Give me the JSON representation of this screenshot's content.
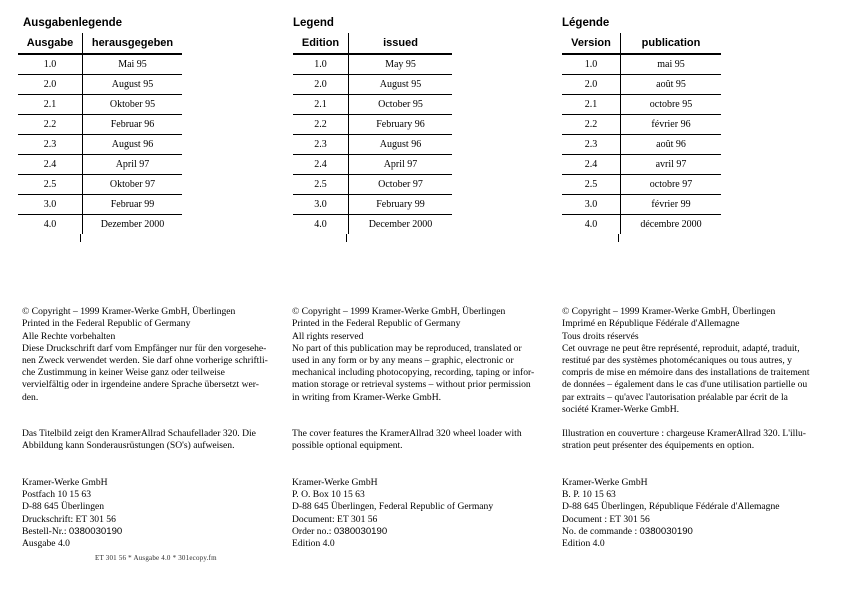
{
  "colors": {
    "text": "#000000",
    "background": "#ffffff"
  },
  "footer": {
    "text": "ET 301 56 * Ausgabe 4.0 * 301ecopy.fm"
  },
  "sections": [
    {
      "lang": "german",
      "title": "Ausgabenlegende",
      "table": {
        "headers": [
          "Ausgabe",
          "herausgegeben"
        ],
        "rows": [
          [
            "1.0",
            "Mai 95"
          ],
          [
            "2.0",
            "August 95"
          ],
          [
            "2.1",
            "Oktober 95"
          ],
          [
            "2.2",
            "Februar 96"
          ],
          [
            "2.3",
            "August 96"
          ],
          [
            "2.4",
            "April 97"
          ],
          [
            "2.5",
            "Oktober 97"
          ],
          [
            "3.0",
            "Februar 99"
          ],
          [
            "4.0",
            "Dezember 2000"
          ]
        ]
      },
      "copyright": "© Copyright – 1999 Kramer-Werke GmbH, Überlingen\nPrinted in the Federal Republic of Germany\nAlle Rechte vorbehalten\nDiese Druckschrift darf vom Empfänger nur für den vorgesehe-\nnen Zweck verwendet werden. Sie darf ohne vorherige schriftli-\nche Zustimmung in keiner Weise ganz oder teilweise\nvervielfältig oder in irgendeine andere Sprache übersetzt wer-\nden.",
      "cover_note": "Das Titelbild zeigt den KramerAllrad Schaufellader 320. Die\nAbbildung kann Sonderausrüstungen (SO's) aufweisen.",
      "address": {
        "company": "Kramer-Werke GmbH",
        "line2": "Postfach 10 15 63",
        "line3": "D-88 645 Überlingen",
        "line4": "Druckschrift: ET 301 56",
        "order_label": "Bestell-Nr.: ",
        "order_number": "0380030190",
        "edition": "Ausgabe 4.0"
      }
    },
    {
      "lang": "english",
      "title": "Legend",
      "table": {
        "headers": [
          "Edition",
          "issued"
        ],
        "rows": [
          [
            "1.0",
            "May 95"
          ],
          [
            "2.0",
            "August 95"
          ],
          [
            "2.1",
            "October 95"
          ],
          [
            "2.2",
            "February 96"
          ],
          [
            "2.3",
            "August 96"
          ],
          [
            "2.4",
            "April 97"
          ],
          [
            "2.5",
            "October 97"
          ],
          [
            "3.0",
            "February 99"
          ],
          [
            "4.0",
            "December 2000"
          ]
        ]
      },
      "copyright": "© Copyright – 1999 Kramer-Werke GmbH, Überlingen\nPrinted in the Federal Republic of Germany\nAll rights reserved\nNo part of this publication may be reproduced, translated or\nused in any form or by any means – graphic, electronic or\nmechanical including photocopying, recording, taping or infor-\nmation storage or retrieval systems – without prior permission\nin writing from Kramer-Werke GmbH.",
      "cover_note": "The cover features the KramerAllrad 320 wheel loader with\npossible optional equipment.",
      "address": {
        "company": "Kramer-Werke GmbH",
        "line2": "P. O. Box 10 15 63",
        "line3": "D-88 645 Überlingen, Federal Republic of Germany",
        "line4": "Document: ET 301 56",
        "order_label": "Order no.: ",
        "order_number": "0380030190",
        "edition": "Edition 4.0"
      }
    },
    {
      "lang": "french",
      "title": "Légende",
      "table": {
        "headers": [
          "Version",
          "publication"
        ],
        "rows": [
          [
            "1.0",
            "mai 95"
          ],
          [
            "2.0",
            "août 95"
          ],
          [
            "2.1",
            "octobre 95"
          ],
          [
            "2.2",
            "février 96"
          ],
          [
            "2.3",
            "août 96"
          ],
          [
            "2.4",
            "avril 97"
          ],
          [
            "2.5",
            "octobre 97"
          ],
          [
            "3.0",
            "février 99"
          ],
          [
            "4.0",
            "décembre 2000"
          ]
        ]
      },
      "copyright": "© Copyright – 1999 Kramer-Werke GmbH, Überlingen\nImprimé en République Fédérale d'Allemagne\nTous droits réservés\nCet ouvrage ne peut être représenté, reproduit, adapté, traduit,\nrestitué par des systèmes photomécaniques ou tous autres, y\ncompris de mise en mémoire dans des installations de traitement\nde données – également dans le cas d'une utilisation partielle ou\npar extraits – qu'avec l'autorisation préalable par écrit de la\nsociété Kramer-Werke GmbH.",
      "cover_note": "Illustration en couverture : chargeuse KramerAllrad 320. L'illu-\nstration peut présenter des équipements en option.",
      "address": {
        "company": "Kramer-Werke GmbH",
        "line2": "B. P. 10 15 63",
        "line3": "D-88 645 Überlingen, République Fédérale d'Allemagne",
        "line4": "Document : ET 301 56",
        "order_label": "No. de commande : ",
        "order_number": "0380030190",
        "edition": "Edition 4.0"
      }
    }
  ]
}
